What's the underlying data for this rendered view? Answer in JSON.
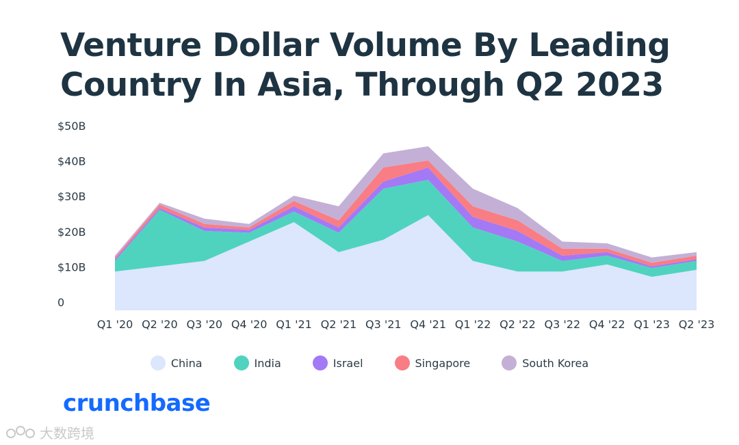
{
  "title": "Venture Dollar Volume By Leading Country In Asia, Through Q2 2023",
  "brand": "crunchbase",
  "watermark_text": "大数跨境",
  "colors": {
    "China": "#dce6fd",
    "India": "#4fd3bf",
    "Israel": "#a379f5",
    "Singapore": "#f97d84",
    "South Korea": "#c4b0d6",
    "brand": "#146aff"
  },
  "chart_data": {
    "type": "area",
    "stacked": true,
    "title": "Venture Dollar Volume By Leading Country In Asia, Through Q2 2023",
    "categories": [
      "Q1 '20",
      "Q2 '20",
      "Q3 '20",
      "Q4 '20",
      "Q1 '21",
      "Q2 '21",
      "Q3 '21",
      "Q4 '21",
      "Q1 '22",
      "Q2 '22",
      "Q3 '22",
      "Q4 '22",
      "Q1 '23",
      "Q2 '23"
    ],
    "y_ticks": [
      "0",
      "$10B",
      "$20B",
      "$30B",
      "$40B",
      "$50B"
    ],
    "ylim": [
      0,
      50
    ],
    "ylabel": "",
    "xlabel": "",
    "legend_position": "bottom",
    "grid": false,
    "series": [
      {
        "name": "China",
        "values": [
          11,
          12.5,
          14,
          19.5,
          25,
          16.5,
          20,
          27,
          14,
          11,
          11,
          13,
          9.5,
          11.5
        ]
      },
      {
        "name": "India",
        "values": [
          3,
          16,
          8.5,
          2.5,
          3,
          5.5,
          14.5,
          10,
          9.5,
          8.5,
          3,
          2.5,
          2.5,
          2.5
        ]
      },
      {
        "name": "Israel",
        "values": [
          0.5,
          0.5,
          1,
          0.8,
          1.5,
          1.5,
          2,
          3.5,
          3,
          3,
          1.5,
          1,
          0.5,
          0.5
        ]
      },
      {
        "name": "Singapore",
        "values": [
          0.5,
          1,
          1,
          0.7,
          1.5,
          2,
          4,
          2,
          3,
          3,
          2,
          1,
          1,
          1
        ]
      },
      {
        "name": "South Korea",
        "values": [
          0.5,
          0.5,
          1.5,
          1,
          1.5,
          4,
          4,
          4,
          5,
          3.5,
          2,
          1.5,
          1.5,
          1
        ]
      }
    ]
  }
}
